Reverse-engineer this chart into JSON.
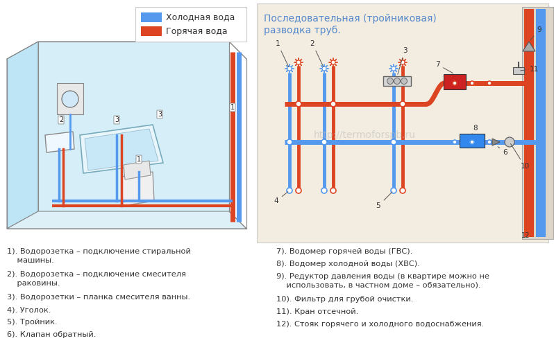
{
  "title_line1": "Последовательная (тройниковая)",
  "title_line2": "разводка труб.",
  "title_color": "#5588cc",
  "cold_color": "#5599ee",
  "hot_color": "#dd4422",
  "cold_label": "Холодная вода",
  "hot_label": "Горячая вода",
  "watermark": "http://termoforspb.ru",
  "bg_color": "#ffffff",
  "diagram_bg": "#f2ede0",
  "left_items": [
    "1). Водорозетка – подключение стиральной\n    машины.",
    "2). Водорозетка – подключение смесителя\n    раковины.",
    "3). Водорозетки – планка смесителя ванны.",
    "4). Уголок.",
    "5). Тройник.",
    "6). Клапан обратный."
  ],
  "right_items": [
    "7). Водомер горячей воды (ГВС).",
    "8). Водомер холодной воды (ХВС).",
    "9). Редуктор давления воды (в квартире можно не\n    использовать, в частном доме – обязательно).",
    "10). Фильтр для грубой очистки.",
    "11). Кран отсечной.",
    "12). Стояк горячего и холодного водоснабжения."
  ]
}
